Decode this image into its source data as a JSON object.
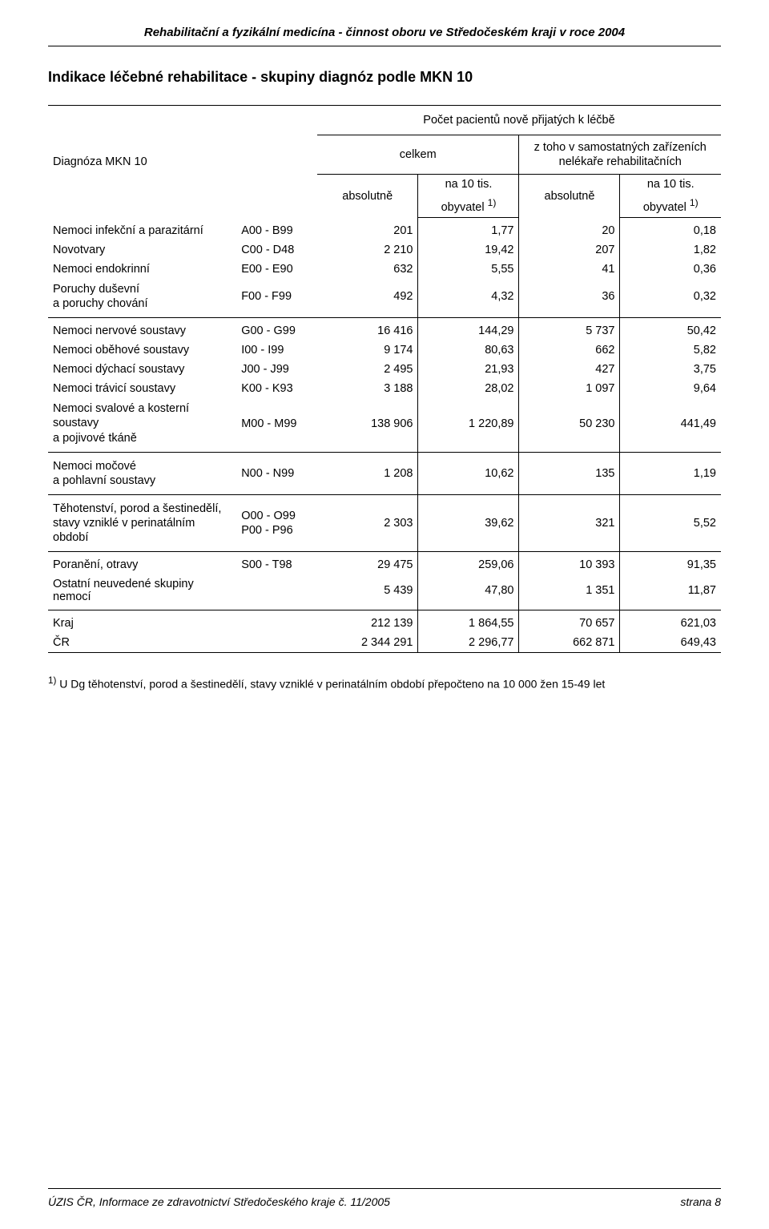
{
  "doc_header": "Rehabilitační a fyzikální medicína - činnost oboru ve Středočeském kraji v roce 2004",
  "title": "Indikace léčebné rehabilitace - skupiny diagnóz podle MKN 10",
  "header": {
    "row_label": "Diagnóza MKN 10",
    "super": "Počet pacientů nově přijatých k léčbě",
    "group_total": "celkem",
    "group_sub": "z toho v samostatných zařízeních nelékaře rehabilitačních",
    "abs": "absolutně",
    "per10k_a": "na 10 tis.",
    "per10k_b": "obyvatel ",
    "per10k_sup": "1)"
  },
  "groups": [
    {
      "rows": [
        {
          "label": "Nemoci infekční a parazitární",
          "code": "A00 - B99",
          "abs1": "201",
          "rate1": "1,77",
          "abs2": "20",
          "rate2": "0,18"
        },
        {
          "label": "Novotvary",
          "code": "C00 - D48",
          "abs1": "2 210",
          "rate1": "19,42",
          "abs2": "207",
          "rate2": "1,82"
        },
        {
          "label": "Nemoci endokrinní",
          "code": "E00 - E90",
          "abs1": "632",
          "rate1": "5,55",
          "abs2": "41",
          "rate2": "0,36"
        },
        {
          "label": "Poruchy duševní\na poruchy chování",
          "code": "F00 - F99",
          "abs1": "492",
          "rate1": "4,32",
          "abs2": "36",
          "rate2": "0,32"
        }
      ]
    },
    {
      "rows": [
        {
          "label": "Nemoci nervové soustavy",
          "code": "G00 - G99",
          "abs1": "16 416",
          "rate1": "144,29",
          "abs2": "5 737",
          "rate2": "50,42"
        },
        {
          "label": "Nemoci oběhové soustavy",
          "code": "I00 - I99",
          "abs1": "9 174",
          "rate1": "80,63",
          "abs2": "662",
          "rate2": "5,82"
        },
        {
          "label": "Nemoci dýchací soustavy",
          "code": "J00 - J99",
          "abs1": "2 495",
          "rate1": "21,93",
          "abs2": "427",
          "rate2": "3,75"
        },
        {
          "label": "Nemoci trávicí soustavy",
          "code": "K00 - K93",
          "abs1": "3 188",
          "rate1": "28,02",
          "abs2": "1 097",
          "rate2": "9,64"
        },
        {
          "label": "Nemoci svalové a kosterní soustavy\na pojivové tkáně",
          "code": "M00 - M99",
          "abs1": "138 906",
          "rate1": "1 220,89",
          "abs2": "50 230",
          "rate2": "441,49"
        }
      ]
    },
    {
      "rows": [
        {
          "label": "Nemoci močové\na pohlavní soustavy",
          "code": "N00 - N99",
          "abs1": "1 208",
          "rate1": "10,62",
          "abs2": "135",
          "rate2": "1,19"
        }
      ]
    },
    {
      "rows": [
        {
          "label": "Těhotenství, porod a šestinedělí,\nstavy vzniklé v perinatálním období",
          "code": "O00 - O99\nP00 - P96",
          "abs1": "2 303",
          "rate1": "39,62",
          "abs2": "321",
          "rate2": "5,52"
        }
      ]
    },
    {
      "rows": [
        {
          "label": "Poranění, otravy",
          "code": "S00 - T98",
          "abs1": "29 475",
          "rate1": "259,06",
          "abs2": "10 393",
          "rate2": "91,35"
        },
        {
          "label": "Ostatní neuvedené skupiny nemocí",
          "code": "",
          "abs1": "5 439",
          "rate1": "47,80",
          "abs2": "1 351",
          "rate2": "11,87"
        }
      ]
    },
    {
      "rows": [
        {
          "label": "Kraj",
          "code": "",
          "abs1": "212 139",
          "rate1": "1 864,55",
          "abs2": "70 657",
          "rate2": "621,03"
        },
        {
          "label": "ČR",
          "code": "",
          "abs1": "2 344 291",
          "rate1": "2 296,77",
          "abs2": "662 871",
          "rate2": "649,43"
        }
      ]
    }
  ],
  "footnote_sup": "1)",
  "footnote": " U Dg těhotenství, porod a šestinedělí, stavy vzniklé v perinatálním období přepočteno na 10 000 žen 15-49 let",
  "footer_left": "ÚZIS ČR, Informace ze zdravotnictví Středočeského kraje č. 11/2005",
  "footer_right": "strana 8"
}
